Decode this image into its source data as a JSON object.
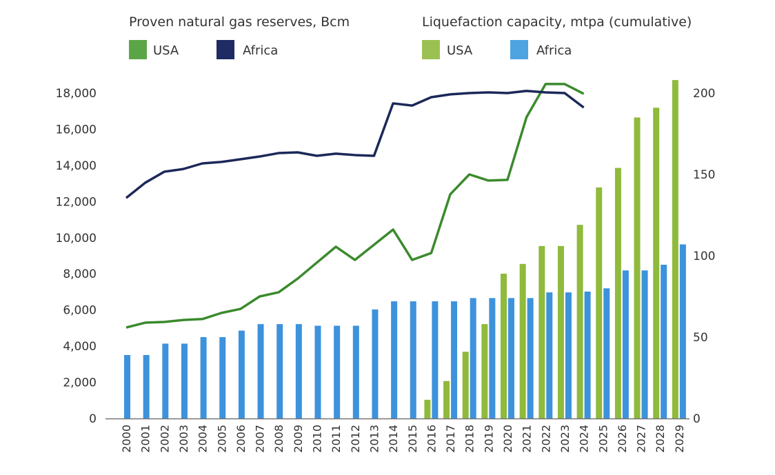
{
  "chart_data": {
    "type": "bar+line",
    "legend": {
      "groups": [
        {
          "title": "Proven natural gas reserves, Bcm",
          "entries": [
            {
              "label": "USA",
              "color": "#5aa646"
            },
            {
              "label": "Africa",
              "color": "#1f2b63"
            }
          ]
        },
        {
          "title": "Liquefaction capacity, mtpa (cumulative)",
          "entries": [
            {
              "label": "USA",
              "color": "#9cc153"
            },
            {
              "label": "Africa",
              "color": "#4ea4e0"
            }
          ]
        }
      ],
      "placement": "top"
    },
    "categories": [
      "2000",
      "2001",
      "2002",
      "2003",
      "2004",
      "2005",
      "2006",
      "2007",
      "2008",
      "2009",
      "2010",
      "2011",
      "2012",
      "2013",
      "2014",
      "2015",
      "2016",
      "2017",
      "2018",
      "2019",
      "2020",
      "2021",
      "2022",
      "2023",
      "2024",
      "2025",
      "2026",
      "2027",
      "2028",
      "2029"
    ],
    "left_axis": {
      "ylim": [
        0,
        18000
      ],
      "ticks": [
        "0",
        "2,000",
        "4,000",
        "6,000",
        "8,000",
        "10,000",
        "12,000",
        "14,000",
        "16,000",
        "18,000"
      ],
      "tick_values": [
        0,
        2000,
        4000,
        6000,
        8000,
        10000,
        12000,
        14000,
        16000,
        18000
      ]
    },
    "right_axis": {
      "ylim": [
        0,
        200
      ],
      "ticks": [
        "0",
        "50",
        "100",
        "150",
        "200"
      ],
      "tick_values": [
        0,
        50,
        100,
        150,
        200
      ]
    },
    "grid": false,
    "lines": [
      {
        "name": "USA",
        "axis": "left",
        "color": "#3a8a2c",
        "values": [
          5030,
          5300,
          5340,
          5450,
          5500,
          5840,
          6060,
          6750,
          6980,
          7740,
          8620,
          9500,
          8770,
          9610,
          10450,
          8770,
          9150,
          12400,
          13500,
          13160,
          13200,
          16670,
          18500,
          18500,
          17960,
          null,
          null,
          null,
          null,
          null
        ]
      },
      {
        "name": "Africa",
        "axis": "left",
        "color": "#1b2858",
        "values": [
          12200,
          13040,
          13650,
          13800,
          14110,
          14190,
          14340,
          14490,
          14680,
          14720,
          14530,
          14650,
          14570,
          14530,
          17430,
          17310,
          17770,
          17930,
          18000,
          18040,
          18000,
          18120,
          18040,
          18000,
          17200,
          null,
          null,
          null,
          null,
          null
        ]
      }
    ],
    "bars": [
      {
        "name": "USA",
        "axis": "right",
        "color": "#8fba3c",
        "values": [
          null,
          null,
          null,
          null,
          null,
          null,
          null,
          null,
          null,
          null,
          null,
          null,
          null,
          null,
          null,
          null,
          11.5,
          23,
          41,
          58,
          89,
          95,
          106,
          106,
          119,
          142,
          154,
          185,
          191,
          208
        ]
      },
      {
        "name": "Africa",
        "axis": "right",
        "color": "#3d92dc",
        "values": [
          39,
          39,
          46,
          46,
          50,
          50,
          54,
          58,
          58,
          58,
          57,
          57,
          57,
          67,
          72,
          72,
          72,
          72,
          74,
          74,
          74,
          74,
          77.5,
          77.5,
          78,
          80,
          91,
          91,
          94.5,
          107
        ]
      }
    ]
  }
}
